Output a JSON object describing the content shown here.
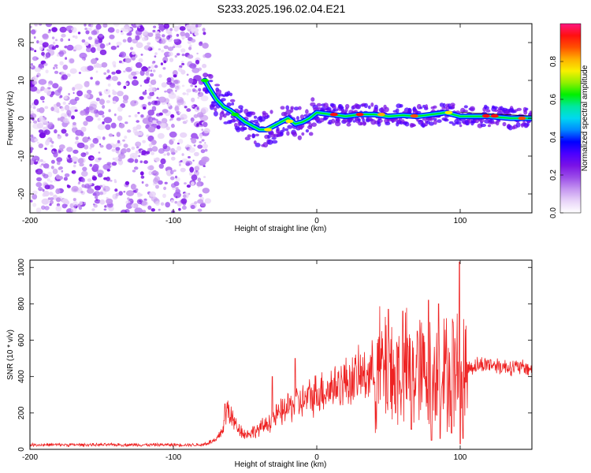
{
  "title": "S233.2025.196.02.04.E21",
  "chart_data": [
    {
      "type": "heatmap",
      "xlabel": "Height of straight line (km)",
      "ylabel": "Frequency (Hz)",
      "xlim": [
        -200,
        150
      ],
      "ylim": [
        -25,
        25
      ],
      "xticks": [
        -200,
        -100,
        0,
        100
      ],
      "yticks": [
        -20,
        -10,
        0,
        10,
        20
      ],
      "colorbar": {
        "label": "Normalized spectral amplitude",
        "range": [
          0,
          1
        ],
        "ticks": [
          "0.0",
          "0.2",
          "0.4",
          "0.6",
          "0.8"
        ],
        "colors": [
          "#ffffff",
          "#e8d4f8",
          "#c596f0",
          "#9b4de8",
          "#7a12e6",
          "#4b00ff",
          "#0000ff",
          "#0088ff",
          "#00d8f0",
          "#00e8a0",
          "#00f000",
          "#90f000",
          "#f8f000",
          "#ffb000",
          "#ff5000",
          "#ff1010",
          "#ff1680"
        ]
      },
      "noise_region_x": [
        -200,
        -78
      ],
      "ridge": [
        {
          "x": -78,
          "y": 10
        },
        {
          "x": -75,
          "y": 8
        },
        {
          "x": -70,
          "y": 5
        },
        {
          "x": -65,
          "y": 3
        },
        {
          "x": -60,
          "y": 2
        },
        {
          "x": -55,
          "y": 0.5
        },
        {
          "x": -50,
          "y": -1
        },
        {
          "x": -45,
          "y": -2
        },
        {
          "x": -40,
          "y": -3
        },
        {
          "x": -35,
          "y": -3
        },
        {
          "x": -30,
          "y": -2
        },
        {
          "x": -25,
          "y": -1
        },
        {
          "x": -20,
          "y": 0
        },
        {
          "x": -15,
          "y": -1.5
        },
        {
          "x": -10,
          "y": -1
        },
        {
          "x": -5,
          "y": 0
        },
        {
          "x": 0,
          "y": 1.5
        },
        {
          "x": 10,
          "y": 1
        },
        {
          "x": 20,
          "y": 0.5
        },
        {
          "x": 30,
          "y": 1
        },
        {
          "x": 40,
          "y": 1
        },
        {
          "x": 50,
          "y": 0.5
        },
        {
          "x": 60,
          "y": 0.8
        },
        {
          "x": 70,
          "y": 0.5
        },
        {
          "x": 80,
          "y": 1
        },
        {
          "x": 90,
          "y": 1.5
        },
        {
          "x": 100,
          "y": 0.5
        },
        {
          "x": 110,
          "y": 0.5
        },
        {
          "x": 120,
          "y": 0.5
        },
        {
          "x": 135,
          "y": 0
        },
        {
          "x": 150,
          "y": 0
        }
      ]
    },
    {
      "type": "line",
      "xlabel": "Height of straight line (km)",
      "ylabel": "SNR (10 * v/v)",
      "xlim": [
        -200,
        150
      ],
      "ylim": [
        0,
        1040
      ],
      "xticks": [
        -200,
        -100,
        0,
        100
      ],
      "yticks": [
        0,
        200,
        400,
        600,
        800,
        1000
      ],
      "series": [
        {
          "color": "#ee2222",
          "envelope": [
            {
              "x": -200,
              "y": 25
            },
            {
              "x": -150,
              "y": 25
            },
            {
              "x": -100,
              "y": 25
            },
            {
              "x": -80,
              "y": 25
            },
            {
              "x": -70,
              "y": 50
            },
            {
              "x": -65,
              "y": 120
            },
            {
              "x": -62,
              "y": 230
            },
            {
              "x": -58,
              "y": 150
            },
            {
              "x": -50,
              "y": 80
            },
            {
              "x": -40,
              "y": 110
            },
            {
              "x": -30,
              "y": 170
            },
            {
              "x": -20,
              "y": 230
            },
            {
              "x": -15,
              "y": 250
            },
            {
              "x": -10,
              "y": 260
            },
            {
              "x": 0,
              "y": 310
            },
            {
              "x": 10,
              "y": 340
            },
            {
              "x": 20,
              "y": 370
            },
            {
              "x": 30,
              "y": 400
            },
            {
              "x": 40,
              "y": 430
            },
            {
              "x": 50,
              "y": 450
            },
            {
              "x": 60,
              "y": 430
            },
            {
              "x": 70,
              "y": 420
            },
            {
              "x": 80,
              "y": 410
            },
            {
              "x": 90,
              "y": 420
            },
            {
              "x": 100,
              "y": 430
            },
            {
              "x": 110,
              "y": 460
            },
            {
              "x": 120,
              "y": 470
            },
            {
              "x": 130,
              "y": 455
            },
            {
              "x": 140,
              "y": 450
            },
            {
              "x": 150,
              "y": 445
            }
          ],
          "peaks": [
            {
              "x": -64,
              "y": 250
            },
            {
              "x": -31,
              "y": 400
            },
            {
              "x": -15,
              "y": 500
            },
            {
              "x": 50,
              "y": 770
            },
            {
              "x": 60,
              "y": 760
            },
            {
              "x": 70,
              "y": 650
            },
            {
              "x": 78,
              "y": 820
            },
            {
              "x": 85,
              "y": 800
            },
            {
              "x": 95,
              "y": 700
            },
            {
              "x": 99.5,
              "y": 1030
            }
          ],
          "dips": [
            {
              "x": 55,
              "y": 200
            },
            {
              "x": 66,
              "y": 110
            },
            {
              "x": 80,
              "y": 50
            },
            {
              "x": 86,
              "y": 60
            },
            {
              "x": 94,
              "y": 90
            },
            {
              "x": 100,
              "y": 30
            },
            {
              "x": 102,
              "y": 60
            }
          ]
        }
      ]
    }
  ]
}
